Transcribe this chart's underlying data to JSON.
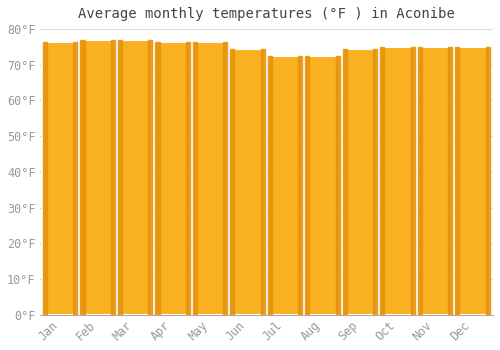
{
  "title": "Average monthly temperatures (°F ) in Aconibe",
  "months": [
    "Jan",
    "Feb",
    "Mar",
    "Apr",
    "May",
    "Jun",
    "Jul",
    "Aug",
    "Sep",
    "Oct",
    "Nov",
    "Dec"
  ],
  "values": [
    76.5,
    77.0,
    77.0,
    76.5,
    76.5,
    74.5,
    72.5,
    72.5,
    74.5,
    75.0,
    75.0,
    75.0
  ],
  "bar_color_main": "#F9B122",
  "bar_color_edge": "#E8920A",
  "background_color": "#FFFFFF",
  "grid_color": "#DDDDDD",
  "ylim": [
    0,
    80
  ],
  "yticks": [
    0,
    10,
    20,
    30,
    40,
    50,
    60,
    70,
    80
  ],
  "ylabel_suffix": "°F",
  "title_fontsize": 10,
  "tick_fontsize": 8.5
}
